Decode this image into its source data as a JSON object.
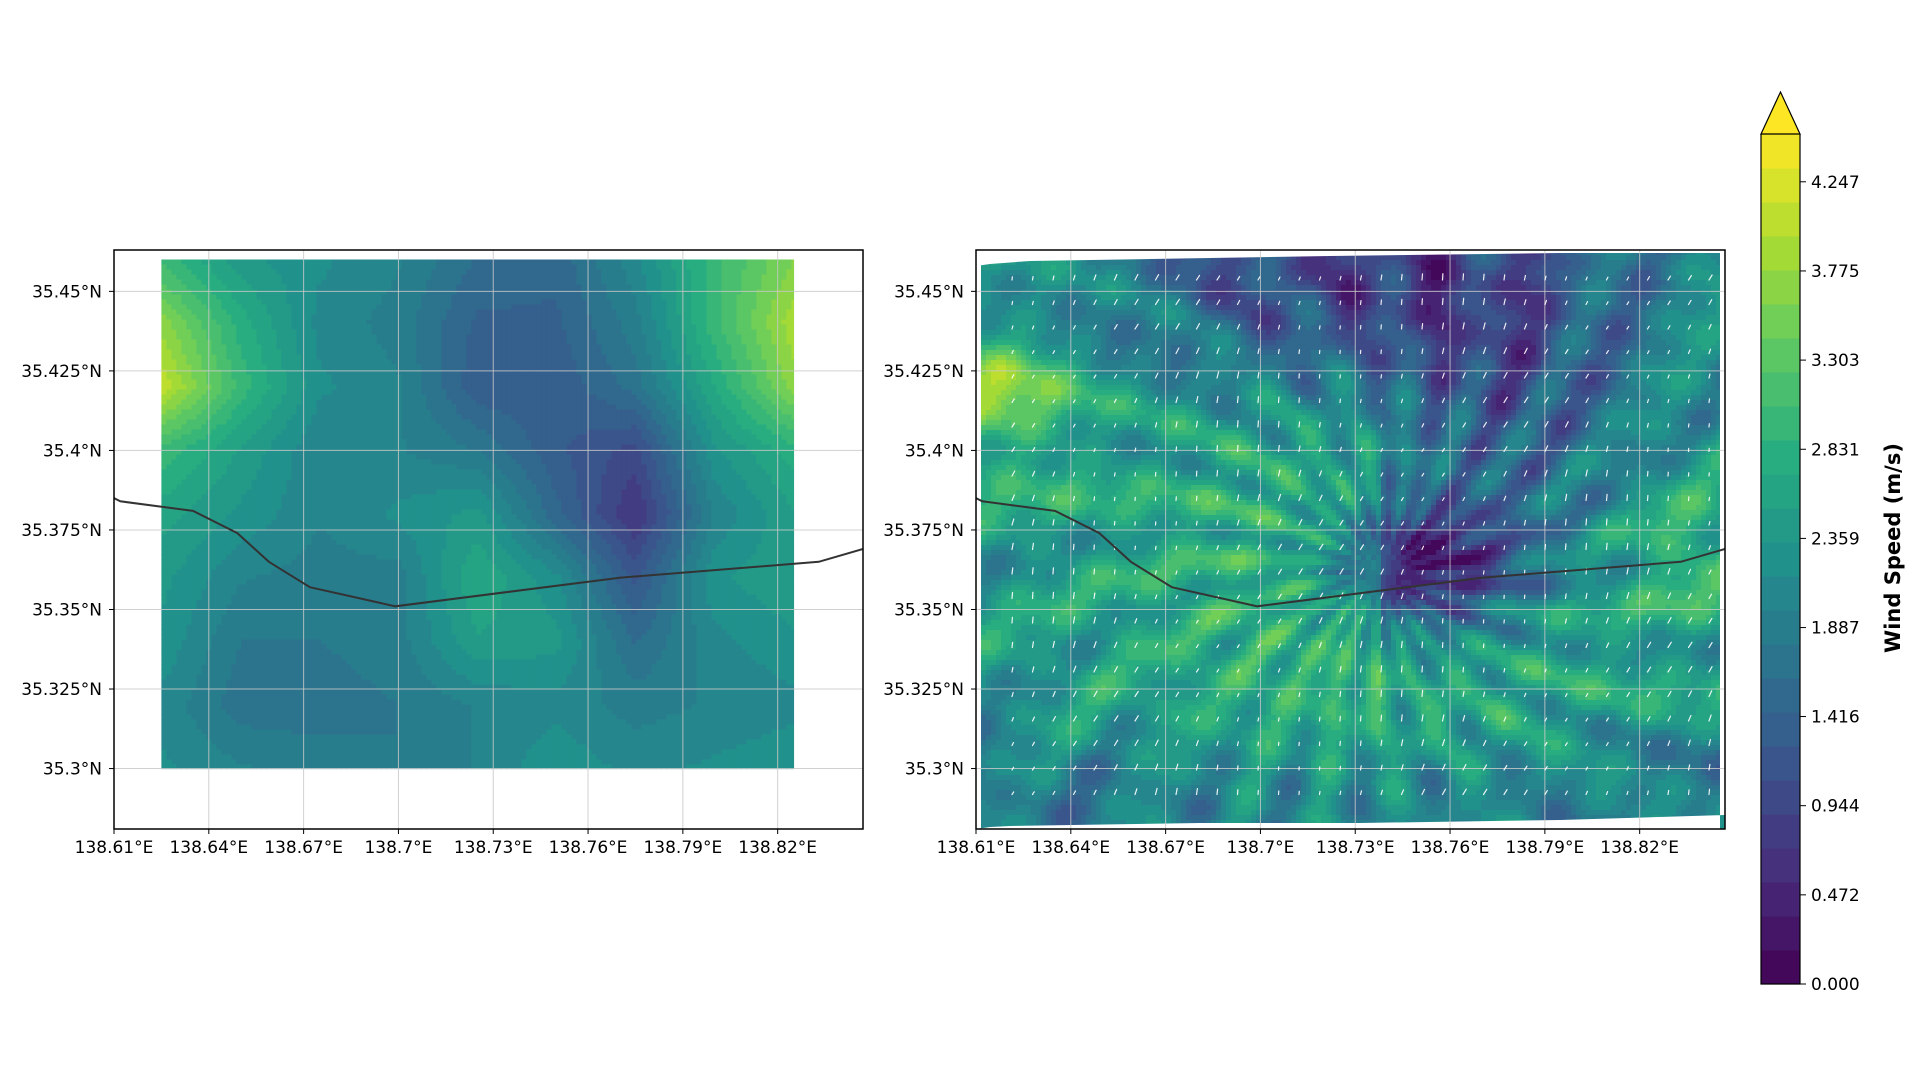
{
  "chart_data": [
    {
      "type": "heatmap",
      "name": "coarse wind speed field",
      "title": "",
      "x_ticks": [
        138.61,
        138.64,
        138.67,
        138.7,
        138.73,
        138.76,
        138.79,
        138.82
      ],
      "x_tick_labels": [
        "138.61°E",
        "138.64°E",
        "138.67°E",
        "138.7°E",
        "138.73°E",
        "138.76°E",
        "138.79°E",
        "138.82°E"
      ],
      "y_ticks": [
        35.3,
        35.325,
        35.35,
        35.375,
        35.4,
        35.425,
        35.45
      ],
      "y_tick_labels": [
        "35.3°N",
        "35.325°N",
        "35.35°N",
        "35.375°N",
        "35.4°N",
        "35.425°N",
        "35.45°N"
      ],
      "xlim": [
        138.61,
        138.847
      ],
      "ylim": [
        35.281,
        35.463
      ],
      "grid": true,
      "data_extent": {
        "lon": [
          138.625,
          138.825
        ],
        "lat": [
          35.3,
          35.46
        ]
      },
      "lons": [
        138.625,
        138.65,
        138.675,
        138.7,
        138.725,
        138.75,
        138.775,
        138.8,
        138.825
      ],
      "lats": [
        35.46,
        35.44,
        35.42,
        35.4,
        35.38,
        35.36,
        35.34,
        35.32,
        35.3
      ],
      "values": [
        [
          3.0,
          2.4,
          2.2,
          2.0,
          1.6,
          1.5,
          2.1,
          3.0,
          3.6
        ],
        [
          3.7,
          2.8,
          2.1,
          1.9,
          1.4,
          1.4,
          1.9,
          3.0,
          3.9
        ],
        [
          4.1,
          3.0,
          2.2,
          2.0,
          1.3,
          1.3,
          1.7,
          2.7,
          3.7
        ],
        [
          3.0,
          2.5,
          2.0,
          2.0,
          1.8,
          1.3,
          1.0,
          2.3,
          2.8
        ],
        [
          2.6,
          2.3,
          2.0,
          2.2,
          2.4,
          1.5,
          0.7,
          2.0,
          2.5
        ],
        [
          2.4,
          2.0,
          1.9,
          1.9,
          2.7,
          2.2,
          1.2,
          2.3,
          2.5
        ],
        [
          2.3,
          1.8,
          1.8,
          1.9,
          2.5,
          2.4,
          1.6,
          2.1,
          2.3
        ],
        [
          2.1,
          1.7,
          1.7,
          1.8,
          2.0,
          2.1,
          1.9,
          2.0,
          2.1
        ],
        [
          2.2,
          2.0,
          1.9,
          1.8,
          2.0,
          2.3,
          2.1,
          2.2,
          2.3
        ]
      ],
      "boundary_line": [
        [
          138.61,
          35.385
        ],
        [
          138.612,
          35.384
        ],
        [
          138.635,
          35.381
        ],
        [
          138.649,
          35.374
        ],
        [
          138.659,
          35.365
        ],
        [
          138.672,
          35.357
        ],
        [
          138.699,
          35.351
        ],
        [
          138.77,
          35.36
        ],
        [
          138.833,
          35.365
        ],
        [
          138.847,
          35.369
        ]
      ]
    },
    {
      "type": "heatmap",
      "name": "high-resolution wind speed field with wind vectors",
      "title": "",
      "x_ticks": [
        138.61,
        138.64,
        138.67,
        138.7,
        138.73,
        138.76,
        138.79,
        138.82
      ],
      "x_tick_labels": [
        "138.61°E",
        "138.64°E",
        "138.67°E",
        "138.7°E",
        "138.73°E",
        "138.76°E",
        "138.79°E",
        "138.82°E"
      ],
      "y_ticks": [
        35.3,
        35.325,
        35.35,
        35.375,
        35.4,
        35.425,
        35.45
      ],
      "y_tick_labels": [
        "35.3°N",
        "35.325°N",
        "35.35°N",
        "35.375°N",
        "35.4°N",
        "35.425°N",
        "35.45°N"
      ],
      "xlim": [
        138.61,
        138.847
      ],
      "ylim": [
        35.281,
        35.463
      ],
      "grid": true,
      "data_extent": {
        "lon": [
          138.61,
          138.847
        ],
        "lat": [
          35.281,
          35.463
        ]
      },
      "summit": {
        "lon": [
          138.727,
          138.75
        ],
        "lat": [
          35.353,
          35.37
        ]
      },
      "field_description": "radial pattern of higher speeds (2.5-4.0 m/s) on the slopes around a low-speed (0.3-1.0 m/s) zone north-east of the summit near 138.75E 35.365N",
      "wind_vectors": "white arrows on a regular grid, pointing mostly north-north-east",
      "boundary_line": [
        [
          138.61,
          35.385
        ],
        [
          138.612,
          35.384
        ],
        [
          138.635,
          35.381
        ],
        [
          138.649,
          35.374
        ],
        [
          138.659,
          35.365
        ],
        [
          138.672,
          35.357
        ],
        [
          138.699,
          35.351
        ],
        [
          138.77,
          35.36
        ],
        [
          138.833,
          35.365
        ],
        [
          138.847,
          35.369
        ]
      ]
    }
  ],
  "colorbar": {
    "label": "Wind Speed (m/s)",
    "min": 0.0,
    "max": 4.5,
    "levels": 25,
    "extend": "max",
    "tick_values": [
      0.0,
      0.472,
      0.944,
      1.416,
      1.887,
      2.359,
      2.831,
      3.303,
      3.775,
      4.247
    ],
    "tick_labels": [
      "0.000",
      "0.472",
      "0.944",
      "1.416",
      "1.887",
      "2.359",
      "2.831",
      "3.303",
      "3.775",
      "4.247"
    ],
    "colormap_stops": [
      "#440154",
      "#472d7b",
      "#3b528b",
      "#2c728e",
      "#21918c",
      "#28ae80",
      "#5ec962",
      "#addc30",
      "#fde725"
    ]
  },
  "colors": {
    "grid": "#c8c8c8",
    "boundary": "#333333",
    "frame": "#000000",
    "vector": "#ffffff"
  }
}
